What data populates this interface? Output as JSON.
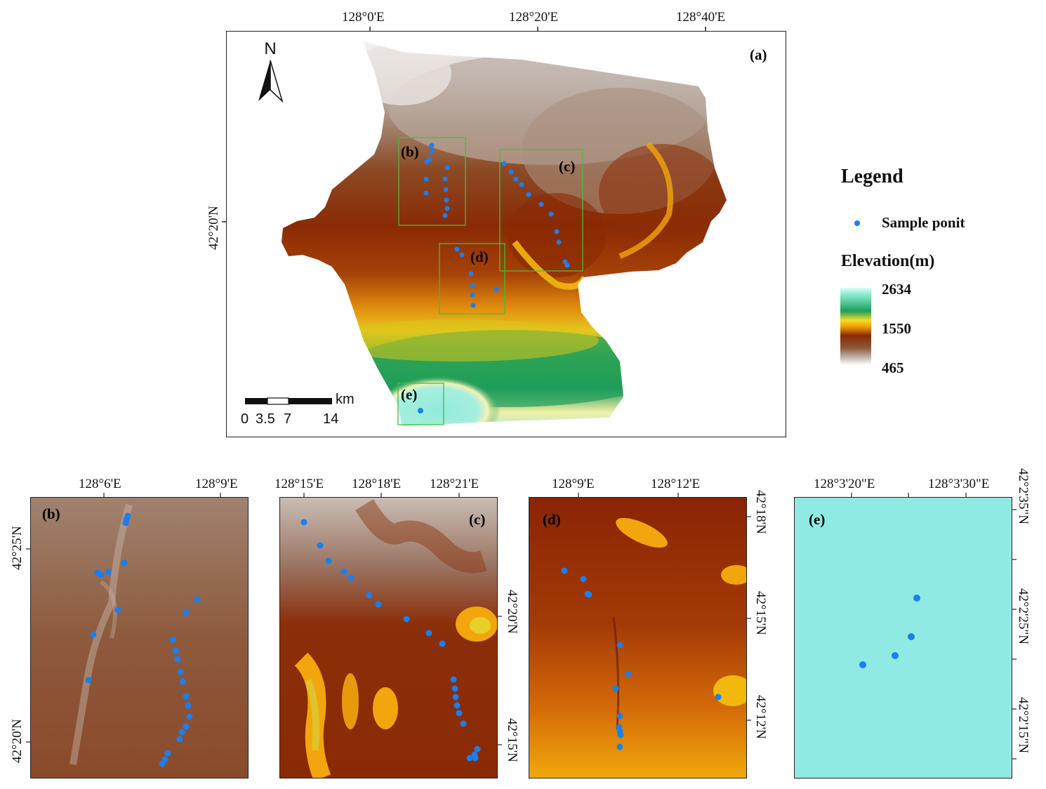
{
  "main_map": {
    "panel_label": "(a)",
    "north_label": "N",
    "top_axis": [
      "128°0'E",
      "128°20'E",
      "128°40'E"
    ],
    "left_axis": [
      "42°20'N"
    ],
    "inset_labels": [
      "(b)",
      "(c)",
      "(d)",
      "(e)"
    ],
    "scale_bar": {
      "unit": "km",
      "ticks": [
        "0",
        "3.5",
        "7",
        "14"
      ]
    }
  },
  "legend": {
    "title": "Legend",
    "point_label": "Sample ponit",
    "elevation_title": "Elevation(m)",
    "elevation_max": "2634",
    "elevation_mid": "1550",
    "elevation_min": "465",
    "ramp_colors": [
      "#dffcf7",
      "#7fe8c9",
      "#1f9e5c",
      "#f1de2a",
      "#f4a100",
      "#8b2a03",
      "#8b5a3a",
      "#c2b5ad",
      "#ffffff"
    ],
    "point_color": "#1a7ff0"
  },
  "panels": {
    "b": {
      "label": "(b)",
      "top_axis": [
        "128°6'E",
        "128°9'E"
      ],
      "left_axis": [
        "42°25'N",
        "42°20'N"
      ]
    },
    "c": {
      "label": "(c)",
      "top_axis": [
        "128°15'E",
        "128°18'E",
        "128°21'E"
      ],
      "right_axis": [
        "42°20'N",
        "42°15'N"
      ]
    },
    "d": {
      "label": "(d)",
      "top_axis": [
        "128°9'E",
        "128°12'E"
      ],
      "right_axis": [
        "42°18'N",
        "42°15'N",
        "42°12'N"
      ]
    },
    "e": {
      "label": "(e)",
      "top_axis": [
        "128°3'20\"E",
        "128°3'30\"E"
      ],
      "right_axis": [
        "42°2'35\"N",
        "42°2'25\"N",
        "42°2'15\"N"
      ]
    }
  }
}
